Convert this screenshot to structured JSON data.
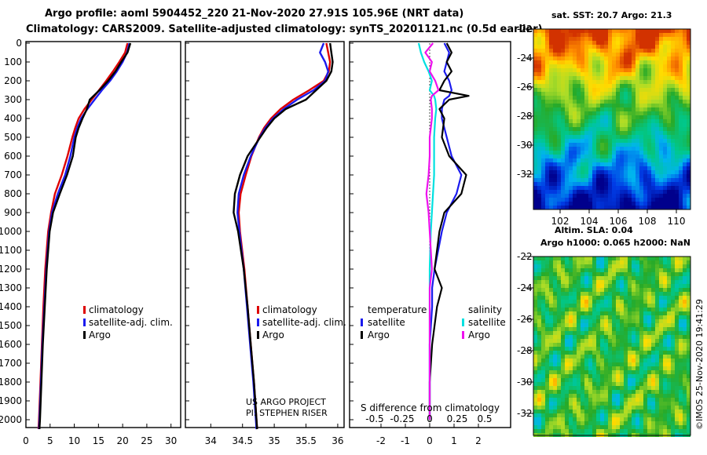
{
  "header": {
    "line1": "Argo profile: aoml 5904452_220 21-Nov-2020 27.91S 105.96E (NRT data)",
    "line2": "Climatology: CARS2009. Satellite-adjusted climatology: synTS_20201121.nc (0.5d earlier)"
  },
  "colors": {
    "climatology": "#dd0000",
    "satellite": "#1a1aee",
    "argo": "#000000",
    "sal_satellite": "#00e0e0",
    "sal_argo": "#ee11ee"
  },
  "chart_data": [
    {
      "type": "line",
      "panel": "temperature",
      "ylabel_ticks": [
        "0",
        "100",
        "200",
        "300",
        "400",
        "500",
        "600",
        "700",
        "800",
        "900",
        "1000",
        "1100",
        "1200",
        "1300",
        "1400",
        "1500",
        "1600",
        "1700",
        "1800",
        "1900",
        "2000"
      ],
      "ylim": [
        0,
        2050
      ],
      "xlim": [
        0,
        32
      ],
      "x_ticks": [
        0,
        5,
        10,
        15,
        20,
        25,
        30
      ],
      "depth": [
        0,
        50,
        100,
        150,
        200,
        250,
        300,
        350,
        400,
        450,
        500,
        600,
        700,
        800,
        900,
        1000,
        1200,
        1400,
        1600,
        1800,
        2000,
        2050
      ],
      "series": [
        {
          "name": "climatology",
          "values": [
            21.0,
            20.5,
            19.3,
            18.0,
            16.6,
            15.1,
            13.6,
            12.1,
            10.9,
            10.2,
            9.6,
            8.6,
            7.4,
            6.0,
            5.2,
            4.6,
            4.0,
            3.6,
            3.3,
            3.0,
            2.7,
            2.6
          ]
        },
        {
          "name": "satellite-adj. clim.",
          "values": [
            21.4,
            20.9,
            20.0,
            18.8,
            17.4,
            15.7,
            14.2,
            12.7,
            11.4,
            10.6,
            10.0,
            9.2,
            8.1,
            6.6,
            5.4,
            4.8,
            4.2,
            3.8,
            3.4,
            3.1,
            2.8,
            2.7
          ]
        },
        {
          "name": "Argo",
          "values": [
            21.6,
            21.0,
            19.7,
            18.5,
            17.0,
            15.2,
            13.2,
            12.6,
            11.7,
            10.9,
            10.3,
            9.7,
            8.5,
            7.0,
            5.6,
            4.9,
            4.3,
            3.9,
            3.5,
            3.2,
            2.9,
            2.8
          ]
        }
      ],
      "legend": [
        "climatology",
        "satellite-adj. clim.",
        "Argo"
      ]
    },
    {
      "type": "line",
      "panel": "salinity",
      "ylim": [
        0,
        2050
      ],
      "xlim": [
        33.6,
        36.1
      ],
      "x_ticks": [
        34,
        34.5,
        35,
        35.5,
        36
      ],
      "depth": [
        0,
        50,
        100,
        150,
        200,
        250,
        300,
        350,
        400,
        450,
        500,
        600,
        700,
        800,
        900,
        1000,
        1200,
        1400,
        1600,
        1800,
        2000,
        2050
      ],
      "series": [
        {
          "name": "climatology",
          "values": [
            35.82,
            35.85,
            35.88,
            35.86,
            35.78,
            35.55,
            35.3,
            35.1,
            34.95,
            34.84,
            34.76,
            34.64,
            34.55,
            34.47,
            34.44,
            34.46,
            34.53,
            34.58,
            34.63,
            34.68,
            34.72,
            34.73
          ]
        },
        {
          "name": "satellite-adj. clim.",
          "values": [
            35.78,
            35.72,
            35.8,
            35.85,
            35.8,
            35.62,
            35.36,
            35.15,
            34.98,
            34.86,
            34.77,
            34.63,
            34.52,
            34.44,
            34.42,
            34.45,
            34.52,
            34.57,
            34.62,
            34.67,
            34.71,
            34.72
          ]
        },
        {
          "name": "Argo",
          "values": [
            35.88,
            35.9,
            35.92,
            35.9,
            35.82,
            35.66,
            35.5,
            35.18,
            35.0,
            34.88,
            34.78,
            34.58,
            34.46,
            34.38,
            34.36,
            34.43,
            34.52,
            34.58,
            34.63,
            34.68,
            34.72,
            34.73
          ]
        }
      ],
      "legend": [
        "climatology",
        "satellite-adj. clim.",
        "Argo"
      ],
      "annotations": [
        "US ARGO PROJECT",
        "PI: STEPHEN RISER"
      ]
    },
    {
      "type": "line",
      "panel": "difference",
      "ylim": [
        0,
        2050
      ],
      "top_ticks": [
        "-2",
        "-1",
        "0",
        "1",
        "2"
      ],
      "bottom_ticks": [
        "-0.5",
        "-0.25",
        "0",
        "0.25",
        "0.5"
      ],
      "xlabel": "S difference from climatology",
      "depth": [
        0,
        50,
        100,
        150,
        200,
        250,
        280,
        300,
        350,
        400,
        500,
        600,
        700,
        800,
        900,
        1000,
        1200,
        1300,
        1400,
        1600,
        1800,
        2000
      ],
      "series": [
        {
          "name": "temperature satellite",
          "values": [
            0.6,
            0.8,
            0.7,
            0.6,
            0.8,
            0.9,
            0.8,
            0.6,
            0.5,
            0.5,
            0.7,
            0.9,
            1.3,
            1.1,
            0.7,
            0.5,
            0.2,
            0.1,
            0.1,
            0.0,
            0.0,
            0.0
          ]
        },
        {
          "name": "temperature Argo",
          "values": [
            0.7,
            0.9,
            0.7,
            0.9,
            0.6,
            0.4,
            1.6,
            0.8,
            0.4,
            0.6,
            0.5,
            0.8,
            1.5,
            1.3,
            0.6,
            0.4,
            0.2,
            0.5,
            0.3,
            0.1,
            0.0,
            0.0
          ]
        },
        {
          "name": "salinity satellite",
          "values": [
            -0.1,
            -0.08,
            -0.05,
            -0.01,
            0.02,
            0.0,
            0.04,
            0.05,
            0.06,
            0.05,
            0.04,
            0.04,
            0.04,
            0.03,
            0.02,
            0.01,
            0.0,
            0.0,
            0.0,
            0.0,
            0.0,
            0.0
          ]
        },
        {
          "name": "salinity Argo",
          "values": [
            0.03,
            -0.04,
            0.02,
            0.0,
            0.05,
            0.08,
            0.02,
            0.01,
            0.02,
            0.02,
            0.0,
            0.0,
            -0.01,
            -0.03,
            -0.01,
            0.0,
            0.02,
            0.0,
            0.0,
            0.0,
            0.0,
            0.0
          ]
        }
      ],
      "legend": {
        "temperature": [
          "satellite",
          "Argo"
        ],
        "salinity": [
          "satellite",
          "Argo"
        ]
      },
      "legend_headers": [
        "temperature",
        "salinity"
      ]
    }
  ],
  "maps": {
    "sst": {
      "title": "sat. SST: 20.7 Argo: 21.3",
      "y_ticks": [
        "-22",
        "-24",
        "-26",
        "-28",
        "-30",
        "-32"
      ],
      "x_ticks": [
        "102",
        "104",
        "106",
        "108",
        "110"
      ]
    },
    "sla": {
      "title1": "Altim. SLA: 0.04",
      "title2": "Argo h1000: 0.065 h2000: NaN",
      "y_ticks": [
        "-22",
        "-24",
        "-26",
        "-28",
        "-30",
        "-32"
      ]
    },
    "credit": "©IMOS 25-Nov-2020 19:41:29"
  }
}
